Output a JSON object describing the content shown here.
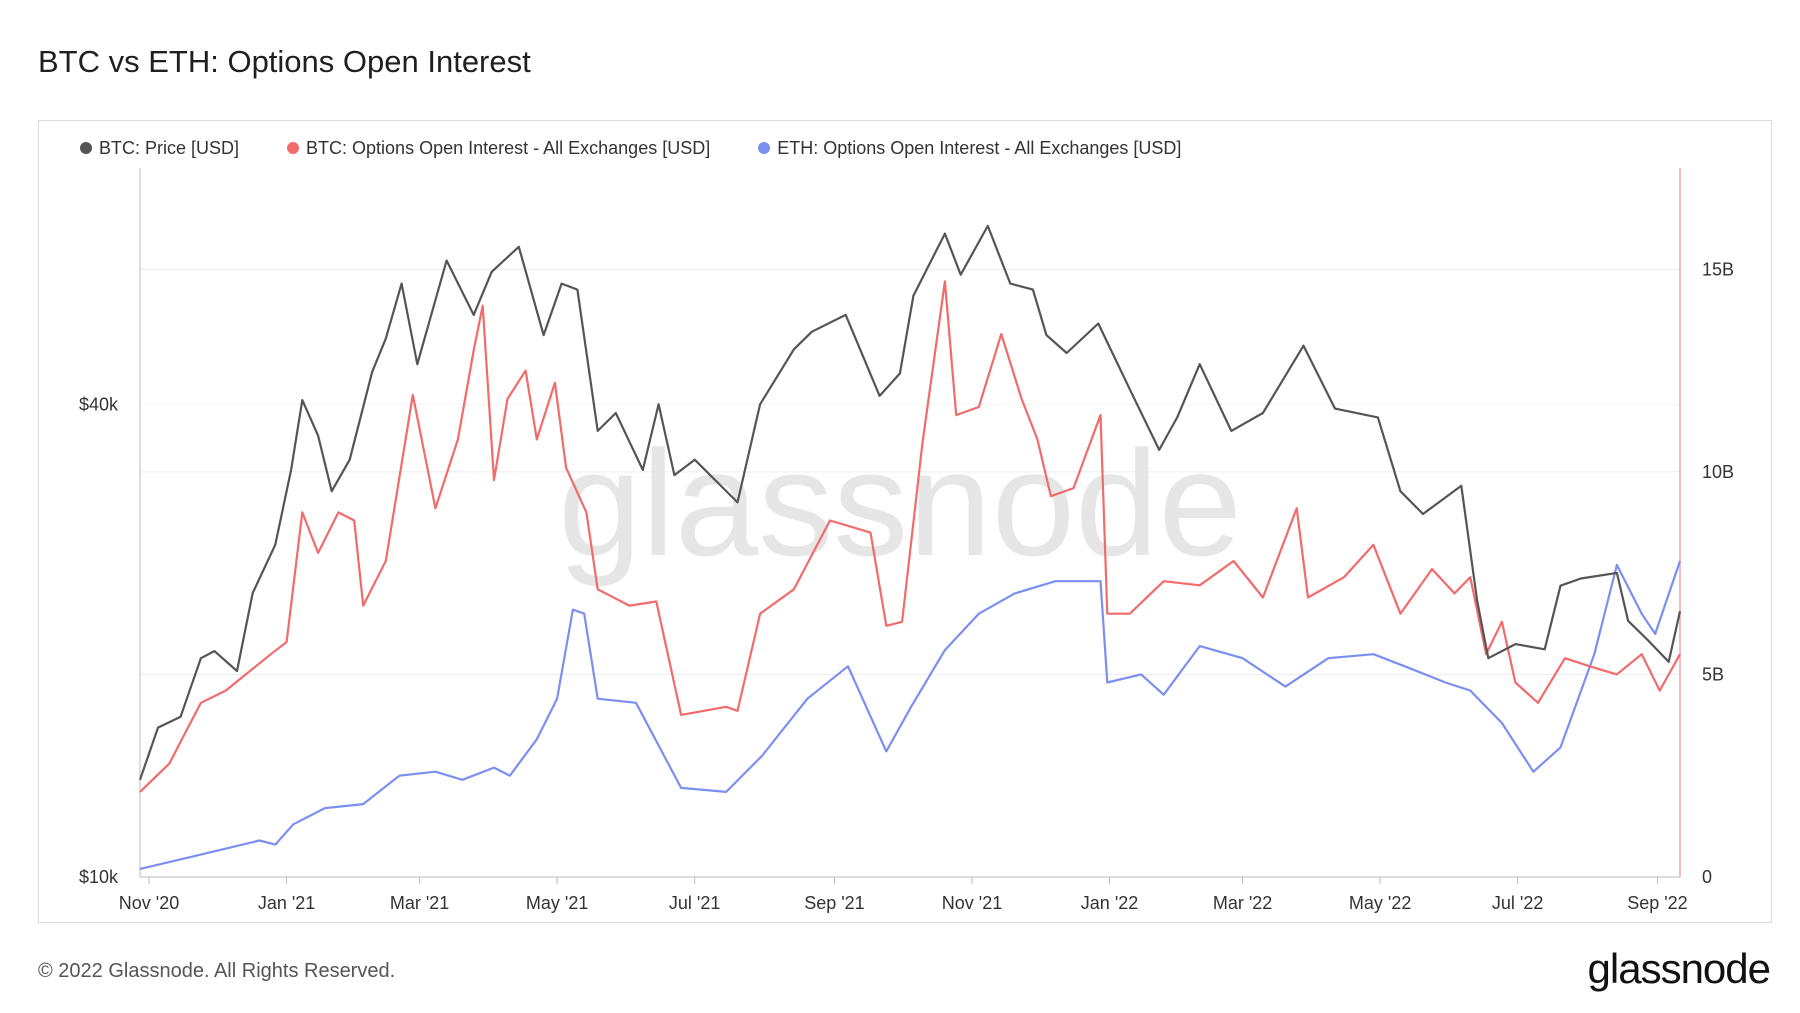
{
  "page": {
    "title": "BTC vs ETH: Options Open Interest",
    "footer": "© 2022 Glassnode. All Rights Reserved.",
    "brand": "glassnode",
    "watermark": "glassnode"
  },
  "chart_data": {
    "type": "line",
    "title": "BTC vs ETH: Options Open Interest",
    "x_ticks": [
      "Nov '20",
      "Jan '21",
      "Mar '21",
      "May '21",
      "Jul '21",
      "Sep '21",
      "Nov '21",
      "Jan '22",
      "Mar '22",
      "May '22",
      "Jul '22",
      "Sep '22"
    ],
    "x_tick_dates": [
      "2020-11-01",
      "2021-01-01",
      "2021-03-01",
      "2021-05-01",
      "2021-07-01",
      "2021-09-01",
      "2021-11-01",
      "2022-01-01",
      "2022-03-01",
      "2022-05-01",
      "2022-07-01",
      "2022-09-01"
    ],
    "xlim": [
      "2020-10-28",
      "2022-09-11"
    ],
    "y_left": {
      "scale": "log",
      "ticks": [
        10000,
        40000
      ],
      "tick_labels": [
        "$10k",
        "$40k"
      ],
      "range": [
        10000,
        80000
      ]
    },
    "y_right": {
      "scale": "linear",
      "ticks": [
        0,
        5000000000,
        10000000000,
        15000000000
      ],
      "tick_labels": [
        "0",
        "5B",
        "10B",
        "15B"
      ],
      "range": [
        0,
        17500000000
      ]
    },
    "legend_position": "top-left",
    "grid": true,
    "series": [
      {
        "name": "BTC: Price [USD]",
        "color": "#555555",
        "axis": "left",
        "points": [
          [
            "2020-10-28",
            13300
          ],
          [
            "2020-11-05",
            15500
          ],
          [
            "2020-11-15",
            16000
          ],
          [
            "2020-11-24",
            19000
          ],
          [
            "2020-11-30",
            19400
          ],
          [
            "2020-12-10",
            18300
          ],
          [
            "2020-12-17",
            23000
          ],
          [
            "2020-12-27",
            26500
          ],
          [
            "2021-01-03",
            33000
          ],
          [
            "2021-01-08",
            40500
          ],
          [
            "2021-01-15",
            36500
          ],
          [
            "2021-01-21",
            31000
          ],
          [
            "2021-01-29",
            34000
          ],
          [
            "2021-02-08",
            44000
          ],
          [
            "2021-02-14",
            48500
          ],
          [
            "2021-02-21",
            57000
          ],
          [
            "2021-02-28",
            45000
          ],
          [
            "2021-03-13",
            61000
          ],
          [
            "2021-03-25",
            52000
          ],
          [
            "2021-04-02",
            59000
          ],
          [
            "2021-04-14",
            63500
          ],
          [
            "2021-04-25",
            49000
          ],
          [
            "2021-05-03",
            57000
          ],
          [
            "2021-05-10",
            56000
          ],
          [
            "2021-05-19",
            37000
          ],
          [
            "2021-05-27",
            39000
          ],
          [
            "2021-06-08",
            33000
          ],
          [
            "2021-06-15",
            40000
          ],
          [
            "2021-06-22",
            32500
          ],
          [
            "2021-07-01",
            34000
          ],
          [
            "2021-07-20",
            30000
          ],
          [
            "2021-07-30",
            40000
          ],
          [
            "2021-08-14",
            47000
          ],
          [
            "2021-08-22",
            49500
          ],
          [
            "2021-09-06",
            52000
          ],
          [
            "2021-09-21",
            41000
          ],
          [
            "2021-09-30",
            43800
          ],
          [
            "2021-10-06",
            55000
          ],
          [
            "2021-10-20",
            66000
          ],
          [
            "2021-10-27",
            58500
          ],
          [
            "2021-11-08",
            67500
          ],
          [
            "2021-11-18",
            57000
          ],
          [
            "2021-11-28",
            56000
          ],
          [
            "2021-12-04",
            49000
          ],
          [
            "2021-12-13",
            46500
          ],
          [
            "2021-12-27",
            50700
          ],
          [
            "2022-01-10",
            41800
          ],
          [
            "2022-01-23",
            35000
          ],
          [
            "2022-01-31",
            38500
          ],
          [
            "2022-02-10",
            45000
          ],
          [
            "2022-02-24",
            37000
          ],
          [
            "2022-03-10",
            39000
          ],
          [
            "2022-03-28",
            47500
          ],
          [
            "2022-04-11",
            39500
          ],
          [
            "2022-04-30",
            38500
          ],
          [
            "2022-05-10",
            31000
          ],
          [
            "2022-05-20",
            29000
          ],
          [
            "2022-06-06",
            31500
          ],
          [
            "2022-06-13",
            22500
          ],
          [
            "2022-06-18",
            19000
          ],
          [
            "2022-06-30",
            19800
          ],
          [
            "2022-07-13",
            19500
          ],
          [
            "2022-07-20",
            23500
          ],
          [
            "2022-07-29",
            24000
          ],
          [
            "2022-08-14",
            24400
          ],
          [
            "2022-08-19",
            21200
          ],
          [
            "2022-08-28",
            20000
          ],
          [
            "2022-09-06",
            18800
          ],
          [
            "2022-09-11",
            21800
          ]
        ]
      },
      {
        "name": "BTC: Options Open Interest - All Exchanges [USD]",
        "color": "#f26b6b",
        "axis": "right",
        "points": [
          [
            "2020-10-28",
            2100000000
          ],
          [
            "2020-11-10",
            2800000000
          ],
          [
            "2020-11-24",
            4300000000
          ],
          [
            "2020-12-05",
            4600000000
          ],
          [
            "2020-12-25",
            5500000000
          ],
          [
            "2021-01-01",
            5800000000
          ],
          [
            "2021-01-08",
            9000000000
          ],
          [
            "2021-01-15",
            8000000000
          ],
          [
            "2021-01-24",
            9000000000
          ],
          [
            "2021-01-31",
            8800000000
          ],
          [
            "2021-02-04",
            6700000000
          ],
          [
            "2021-02-14",
            7800000000
          ],
          [
            "2021-02-26",
            11900000000
          ],
          [
            "2021-03-08",
            9100000000
          ],
          [
            "2021-03-18",
            10800000000
          ],
          [
            "2021-03-25",
            13000000000
          ],
          [
            "2021-03-29",
            14100000000
          ],
          [
            "2021-04-03",
            9800000000
          ],
          [
            "2021-04-09",
            11800000000
          ],
          [
            "2021-04-17",
            12500000000
          ],
          [
            "2021-04-22",
            10800000000
          ],
          [
            "2021-04-30",
            12200000000
          ],
          [
            "2021-05-05",
            10100000000
          ],
          [
            "2021-05-14",
            9000000000
          ],
          [
            "2021-05-19",
            7100000000
          ],
          [
            "2021-06-02",
            6700000000
          ],
          [
            "2021-06-14",
            6800000000
          ],
          [
            "2021-06-25",
            4000000000
          ],
          [
            "2021-07-15",
            4200000000
          ],
          [
            "2021-07-20",
            4100000000
          ],
          [
            "2021-07-30",
            6500000000
          ],
          [
            "2021-08-14",
            7100000000
          ],
          [
            "2021-08-30",
            8800000000
          ],
          [
            "2021-09-17",
            8500000000
          ],
          [
            "2021-09-24",
            6200000000
          ],
          [
            "2021-10-01",
            6300000000
          ],
          [
            "2021-10-10",
            10700000000
          ],
          [
            "2021-10-20",
            14700000000
          ],
          [
            "2021-10-25",
            11400000000
          ],
          [
            "2021-11-04",
            11600000000
          ],
          [
            "2021-11-14",
            13400000000
          ],
          [
            "2021-11-23",
            11800000000
          ],
          [
            "2021-11-30",
            10800000000
          ],
          [
            "2021-12-06",
            9400000000
          ],
          [
            "2021-12-16",
            9600000000
          ],
          [
            "2021-12-28",
            11400000000
          ],
          [
            "2021-12-31",
            6500000000
          ],
          [
            "2022-01-10",
            6500000000
          ],
          [
            "2022-01-25",
            7300000000
          ],
          [
            "2022-02-10",
            7200000000
          ],
          [
            "2022-02-25",
            7800000000
          ],
          [
            "2022-03-10",
            6900000000
          ],
          [
            "2022-03-25",
            9100000000
          ],
          [
            "2022-03-30",
            6900000000
          ],
          [
            "2022-04-15",
            7400000000
          ],
          [
            "2022-04-28",
            8200000000
          ],
          [
            "2022-05-10",
            6500000000
          ],
          [
            "2022-05-24",
            7600000000
          ],
          [
            "2022-06-03",
            7000000000
          ],
          [
            "2022-06-10",
            7400000000
          ],
          [
            "2022-06-17",
            5500000000
          ],
          [
            "2022-06-24",
            6300000000
          ],
          [
            "2022-06-30",
            4800000000
          ],
          [
            "2022-07-10",
            4300000000
          ],
          [
            "2022-07-22",
            5400000000
          ],
          [
            "2022-08-02",
            5200000000
          ],
          [
            "2022-08-14",
            5000000000
          ],
          [
            "2022-08-25",
            5500000000
          ],
          [
            "2022-09-02",
            4600000000
          ],
          [
            "2022-09-11",
            5500000000
          ]
        ]
      },
      {
        "name": "ETH: Options Open Interest - All Exchanges [USD]",
        "color": "#7b8ff0",
        "axis": "right",
        "points": [
          [
            "2020-10-28",
            200000000
          ],
          [
            "2020-11-20",
            500000000
          ],
          [
            "2020-12-20",
            900000000
          ],
          [
            "2020-12-27",
            800000000
          ],
          [
            "2021-01-04",
            1300000000
          ],
          [
            "2021-01-18",
            1700000000
          ],
          [
            "2021-02-04",
            1800000000
          ],
          [
            "2021-02-20",
            2500000000
          ],
          [
            "2021-03-08",
            2600000000
          ],
          [
            "2021-03-20",
            2400000000
          ],
          [
            "2021-04-03",
            2700000000
          ],
          [
            "2021-04-10",
            2500000000
          ],
          [
            "2021-04-22",
            3400000000
          ],
          [
            "2021-05-01",
            4400000000
          ],
          [
            "2021-05-08",
            6600000000
          ],
          [
            "2021-05-13",
            6500000000
          ],
          [
            "2021-05-19",
            4400000000
          ],
          [
            "2021-06-05",
            4300000000
          ],
          [
            "2021-06-25",
            2200000000
          ],
          [
            "2021-07-15",
            2100000000
          ],
          [
            "2021-07-31",
            3000000000
          ],
          [
            "2021-08-20",
            4400000000
          ],
          [
            "2021-09-07",
            5200000000
          ],
          [
            "2021-09-24",
            3100000000
          ],
          [
            "2021-10-05",
            4200000000
          ],
          [
            "2021-10-20",
            5600000000
          ],
          [
            "2021-11-04",
            6500000000
          ],
          [
            "2021-11-20",
            7000000000
          ],
          [
            "2021-12-08",
            7300000000
          ],
          [
            "2021-12-28",
            7300000000
          ],
          [
            "2021-12-31",
            4800000000
          ],
          [
            "2022-01-15",
            5000000000
          ],
          [
            "2022-01-25",
            4500000000
          ],
          [
            "2022-02-10",
            5700000000
          ],
          [
            "2022-03-01",
            5400000000
          ],
          [
            "2022-03-20",
            4700000000
          ],
          [
            "2022-04-08",
            5400000000
          ],
          [
            "2022-04-28",
            5500000000
          ],
          [
            "2022-05-12",
            5200000000
          ],
          [
            "2022-05-30",
            4800000000
          ],
          [
            "2022-06-10",
            4600000000
          ],
          [
            "2022-06-24",
            3800000000
          ],
          [
            "2022-07-08",
            2600000000
          ],
          [
            "2022-07-20",
            3200000000
          ],
          [
            "2022-08-04",
            5500000000
          ],
          [
            "2022-08-14",
            7700000000
          ],
          [
            "2022-08-25",
            6500000000
          ],
          [
            "2022-08-31",
            6000000000
          ],
          [
            "2022-09-11",
            7800000000
          ]
        ]
      }
    ]
  }
}
